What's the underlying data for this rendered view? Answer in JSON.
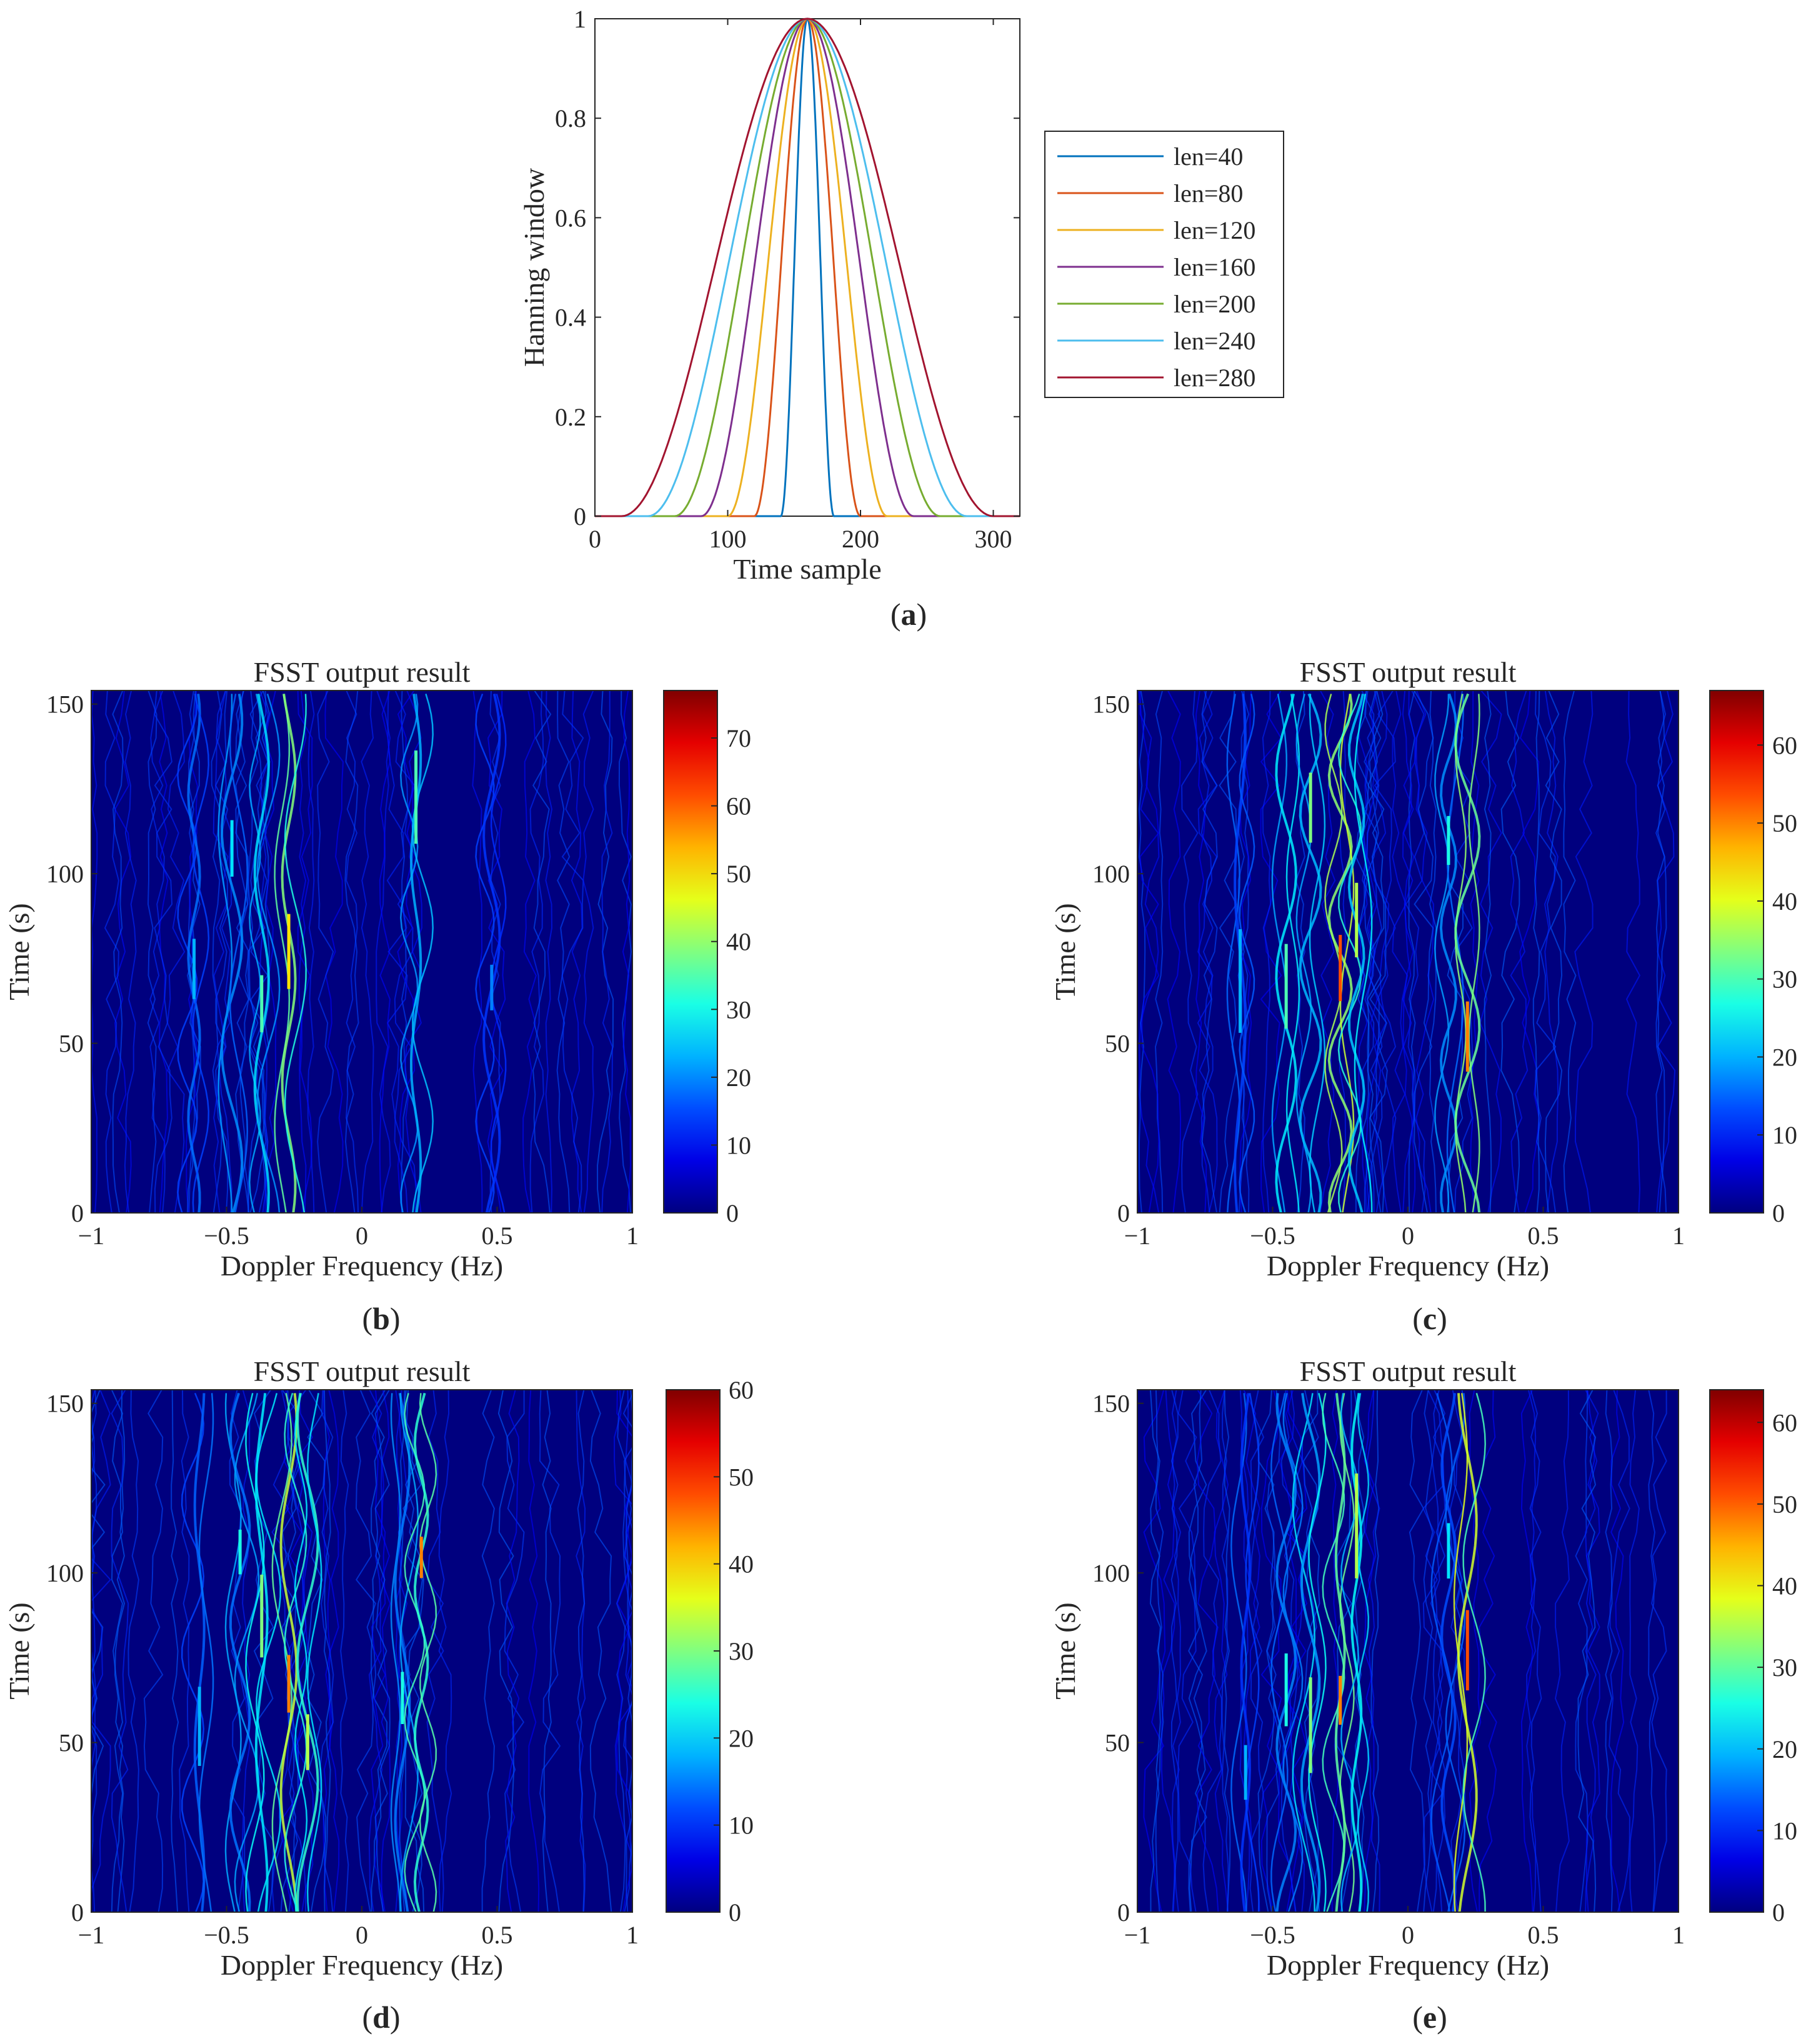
{
  "chart_data": [
    {
      "id": "a",
      "type": "line",
      "caption_letter": "a",
      "title": "",
      "xlabel": "Time sample",
      "ylabel": "Hanning window",
      "xlim": [
        0,
        320
      ],
      "ylim": [
        0,
        1
      ],
      "x_ticks": [
        "0",
        "100",
        "200",
        "300"
      ],
      "y_ticks": [
        "0",
        "0.2",
        "0.4",
        "0.6",
        "0.8",
        "1"
      ],
      "center": 160,
      "legend_position": "outside-right",
      "series": [
        {
          "name": "len=40",
          "length": 40,
          "color": "#0072BD"
        },
        {
          "name": "len=80",
          "length": 80,
          "color": "#D95319"
        },
        {
          "name": "len=120",
          "length": 120,
          "color": "#EDB120"
        },
        {
          "name": "len=160",
          "length": 160,
          "color": "#7E2F8E"
        },
        {
          "name": "len=200",
          "length": 200,
          "color": "#77AC30"
        },
        {
          "name": "len=240",
          "length": 240,
          "color": "#4DBEEE"
        },
        {
          "name": "len=280",
          "length": 280,
          "color": "#A2142F"
        }
      ]
    },
    {
      "id": "b",
      "type": "heatmap",
      "caption_letter": "b",
      "title": "FSST output result",
      "xlabel": "Doppler Frequency (Hz)",
      "ylabel": "Time (s)",
      "xlim": [
        -1,
        1
      ],
      "ylim": [
        0,
        154
      ],
      "x_ticks": [
        "−1",
        "−0.5",
        "0",
        "0.5",
        "1"
      ],
      "y_ticks": [
        "0",
        "50",
        "100",
        "150"
      ],
      "colorbar_max": 77,
      "colorbar_ticks": [
        "0",
        "10",
        "20",
        "30",
        "40",
        "50",
        "60",
        "70"
      ],
      "ridges": [
        {
          "freq": -0.62,
          "intensity": 0.3
        },
        {
          "freq": -0.48,
          "intensity": 0.35
        },
        {
          "freq": -0.37,
          "intensity": 0.45
        },
        {
          "freq": -0.27,
          "intensity": 0.65
        },
        {
          "freq": 0.2,
          "intensity": 0.45
        },
        {
          "freq": 0.48,
          "intensity": 0.25
        }
      ]
    },
    {
      "id": "c",
      "type": "heatmap",
      "caption_letter": "c",
      "title": "FSST output result",
      "xlabel": "Doppler Frequency (Hz)",
      "ylabel": "Time (s)",
      "xlim": [
        -1,
        1
      ],
      "ylim": [
        0,
        154
      ],
      "x_ticks": [
        "−1",
        "−0.5",
        "0",
        "0.5",
        "1"
      ],
      "y_ticks": [
        "0",
        "50",
        "100",
        "150"
      ],
      "colorbar_max": 67,
      "colorbar_ticks": [
        "0",
        "10",
        "20",
        "30",
        "40",
        "50",
        "60"
      ],
      "ridges": [
        {
          "freq": -0.62,
          "intensity": 0.3
        },
        {
          "freq": -0.45,
          "intensity": 0.45
        },
        {
          "freq": -0.36,
          "intensity": 0.5
        },
        {
          "freq": -0.25,
          "intensity": 0.8
        },
        {
          "freq": -0.19,
          "intensity": 0.55
        },
        {
          "freq": 0.15,
          "intensity": 0.4
        },
        {
          "freq": 0.22,
          "intensity": 0.75
        }
      ]
    },
    {
      "id": "d",
      "type": "heatmap",
      "caption_letter": "d",
      "title": "FSST output result",
      "xlabel": "Doppler Frequency (Hz)",
      "ylabel": "Time (s)",
      "xlim": [
        -1,
        1
      ],
      "ylim": [
        0,
        154
      ],
      "x_ticks": [
        "−1",
        "−0.5",
        "0",
        "0.5",
        "1"
      ],
      "y_ticks": [
        "0",
        "50",
        "100",
        "150"
      ],
      "colorbar_max": 60,
      "colorbar_ticks": [
        "0",
        "10",
        "20",
        "30",
        "40",
        "50",
        "60"
      ],
      "ridges": [
        {
          "freq": -0.6,
          "intensity": 0.3
        },
        {
          "freq": -0.45,
          "intensity": 0.4
        },
        {
          "freq": -0.37,
          "intensity": 0.5
        },
        {
          "freq": -0.27,
          "intensity": 0.75
        },
        {
          "freq": -0.2,
          "intensity": 0.55
        },
        {
          "freq": 0.15,
          "intensity": 0.4
        },
        {
          "freq": 0.22,
          "intensity": 0.75
        }
      ]
    },
    {
      "id": "e",
      "type": "heatmap",
      "caption_letter": "e",
      "title": "FSST output result",
      "xlabel": "Doppler Frequency (Hz)",
      "ylabel": "Time (s)",
      "xlim": [
        -1,
        1
      ],
      "ylim": [
        0,
        154
      ],
      "x_ticks": [
        "−1",
        "−0.5",
        "0",
        "0.5",
        "1"
      ],
      "y_ticks": [
        "0",
        "50",
        "100",
        "150"
      ],
      "colorbar_max": 64,
      "colorbar_ticks": [
        "0",
        "10",
        "20",
        "30",
        "40",
        "50",
        "60"
      ],
      "ridges": [
        {
          "freq": -0.6,
          "intensity": 0.3
        },
        {
          "freq": -0.45,
          "intensity": 0.4
        },
        {
          "freq": -0.36,
          "intensity": 0.5
        },
        {
          "freq": -0.25,
          "intensity": 0.75
        },
        {
          "freq": -0.19,
          "intensity": 0.55
        },
        {
          "freq": 0.15,
          "intensity": 0.35
        },
        {
          "freq": 0.22,
          "intensity": 0.8
        }
      ]
    }
  ]
}
